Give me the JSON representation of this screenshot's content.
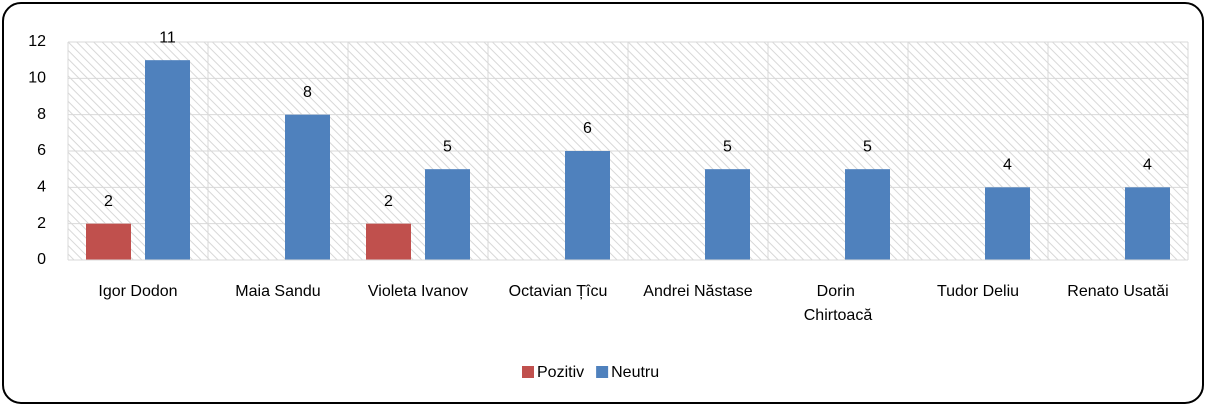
{
  "chart_data": {
    "type": "bar",
    "categories": [
      "Igor Dodon",
      "Maia Sandu",
      "Violeta Ivanov",
      "Octavian Țîcu",
      "Andrei Năstase",
      "Dorin Chirtoacă",
      "Tudor Deliu",
      "Renato Usatăi"
    ],
    "series": [
      {
        "name": "Pozitiv",
        "color": "#c0504d",
        "values": [
          2,
          null,
          2,
          null,
          null,
          null,
          null,
          null
        ]
      },
      {
        "name": "Neutru",
        "color": "#4f81bd",
        "values": [
          11,
          8,
          5,
          6,
          5,
          5,
          4,
          4
        ]
      }
    ],
    "ylim": [
      0,
      12
    ],
    "yticks": [
      0,
      2,
      4,
      6,
      8,
      10,
      12
    ],
    "grid": true,
    "legend": "bottom"
  }
}
